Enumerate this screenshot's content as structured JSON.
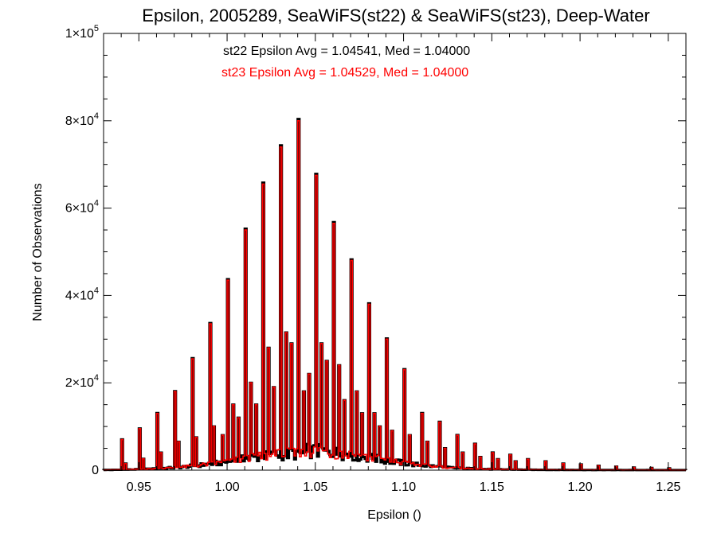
{
  "chart_data": {
    "type": "histogram",
    "title": "Epsilon, 2005289, SeaWiFS(st22) & SeaWiFS(st23), Deep-Water",
    "xlabel": "Epsilon ()",
    "ylabel": "Number of Observations",
    "xlim": [
      0.93,
      1.26
    ],
    "ylim": [
      0,
      100000
    ],
    "x_ticks": [
      "0.95",
      "1.00",
      "1.05",
      "1.10",
      "1.15",
      "1.20",
      "1.25"
    ],
    "x_tick_values": [
      0.95,
      1.0,
      1.05,
      1.1,
      1.15,
      1.2,
      1.25
    ],
    "y_ticks": [
      {
        "value": 0,
        "mantissa": "0",
        "exponent": ""
      },
      {
        "value": 20000,
        "mantissa": "2×10",
        "exponent": "4"
      },
      {
        "value": 40000,
        "mantissa": "4×10",
        "exponent": "4"
      },
      {
        "value": 60000,
        "mantissa": "6×10",
        "exponent": "4"
      },
      {
        "value": 80000,
        "mantissa": "8×10",
        "exponent": "4"
      },
      {
        "value": 100000,
        "mantissa": "1×10",
        "exponent": "5"
      }
    ],
    "annotations": [
      {
        "text": "st22 Epsilon Avg = 1.04541, Med = 1.04000",
        "color": "#000000"
      },
      {
        "text": "st23 Epsilon Avg = 1.04529, Med = 1.04000",
        "color": "#ff0000"
      }
    ],
    "bin_width": 0.001,
    "x_start": 0.93,
    "peaks": [
      {
        "x": 0.94,
        "y": 7000
      },
      {
        "x": 0.95,
        "y": 9500
      },
      {
        "x": 0.96,
        "y": 13000
      },
      {
        "x": 0.97,
        "y": 18000
      },
      {
        "x": 0.98,
        "y": 25500
      },
      {
        "x": 0.99,
        "y": 33500
      },
      {
        "x": 1.0,
        "y": 43500
      },
      {
        "x": 1.01,
        "y": 55000
      },
      {
        "x": 1.02,
        "y": 65500
      },
      {
        "x": 1.03,
        "y": 74000
      },
      {
        "x": 1.04,
        "y": 80000
      },
      {
        "x": 1.05,
        "y": 67500
      },
      {
        "x": 1.06,
        "y": 56500
      },
      {
        "x": 1.07,
        "y": 48000
      },
      {
        "x": 1.08,
        "y": 38000
      },
      {
        "x": 1.09,
        "y": 30000
      },
      {
        "x": 1.1,
        "y": 23000
      },
      {
        "x": 1.11,
        "y": 13000
      },
      {
        "x": 1.12,
        "y": 11000
      },
      {
        "x": 1.13,
        "y": 8000
      },
      {
        "x": 1.14,
        "y": 6000
      },
      {
        "x": 1.15,
        "y": 4000
      },
      {
        "x": 1.16,
        "y": 3500
      },
      {
        "x": 1.17,
        "y": 2500
      },
      {
        "x": 1.18,
        "y": 2000
      },
      {
        "x": 1.19,
        "y": 1500
      },
      {
        "x": 1.2,
        "y": 1300
      },
      {
        "x": 1.21,
        "y": 1000
      },
      {
        "x": 1.22,
        "y": 800
      },
      {
        "x": 1.23,
        "y": 600
      },
      {
        "x": 1.24,
        "y": 500
      },
      {
        "x": 1.25,
        "y": 400
      }
    ],
    "secondary_peaks": [
      {
        "x": 0.942,
        "y": 1500
      },
      {
        "x": 0.952,
        "y": 2600
      },
      {
        "x": 0.962,
        "y": 4000
      },
      {
        "x": 0.972,
        "y": 6500
      },
      {
        "x": 0.982,
        "y": 7500
      },
      {
        "x": 0.992,
        "y": 10000
      },
      {
        "x": 0.997,
        "y": 8000
      },
      {
        "x": 1.003,
        "y": 15000
      },
      {
        "x": 1.006,
        "y": 12000
      },
      {
        "x": 1.013,
        "y": 20000
      },
      {
        "x": 1.016,
        "y": 15000
      },
      {
        "x": 1.023,
        "y": 28000
      },
      {
        "x": 1.026,
        "y": 19000
      },
      {
        "x": 1.033,
        "y": 31500
      },
      {
        "x": 1.036,
        "y": 29000
      },
      {
        "x": 1.043,
        "y": 18000
      },
      {
        "x": 1.046,
        "y": 22000
      },
      {
        "x": 1.053,
        "y": 29000
      },
      {
        "x": 1.056,
        "y": 25000
      },
      {
        "x": 1.063,
        "y": 24000
      },
      {
        "x": 1.066,
        "y": 16000
      },
      {
        "x": 1.073,
        "y": 18000
      },
      {
        "x": 1.076,
        "y": 13000
      },
      {
        "x": 1.083,
        "y": 13000
      },
      {
        "x": 1.086,
        "y": 10000
      },
      {
        "x": 1.093,
        "y": 9000
      },
      {
        "x": 1.103,
        "y": 8000
      },
      {
        "x": 1.113,
        "y": 6500
      },
      {
        "x": 1.123,
        "y": 5000
      },
      {
        "x": 1.133,
        "y": 4000
      },
      {
        "x": 1.143,
        "y": 3000
      },
      {
        "x": 1.153,
        "y": 2500
      },
      {
        "x": 1.163,
        "y": 2000
      }
    ],
    "series": [
      {
        "key": "st22",
        "color": "#000000",
        "peak_scale": 1.005
      },
      {
        "key": "st23",
        "color": "#ff0000",
        "peak_scale": 1.0
      }
    ],
    "grid": false
  }
}
